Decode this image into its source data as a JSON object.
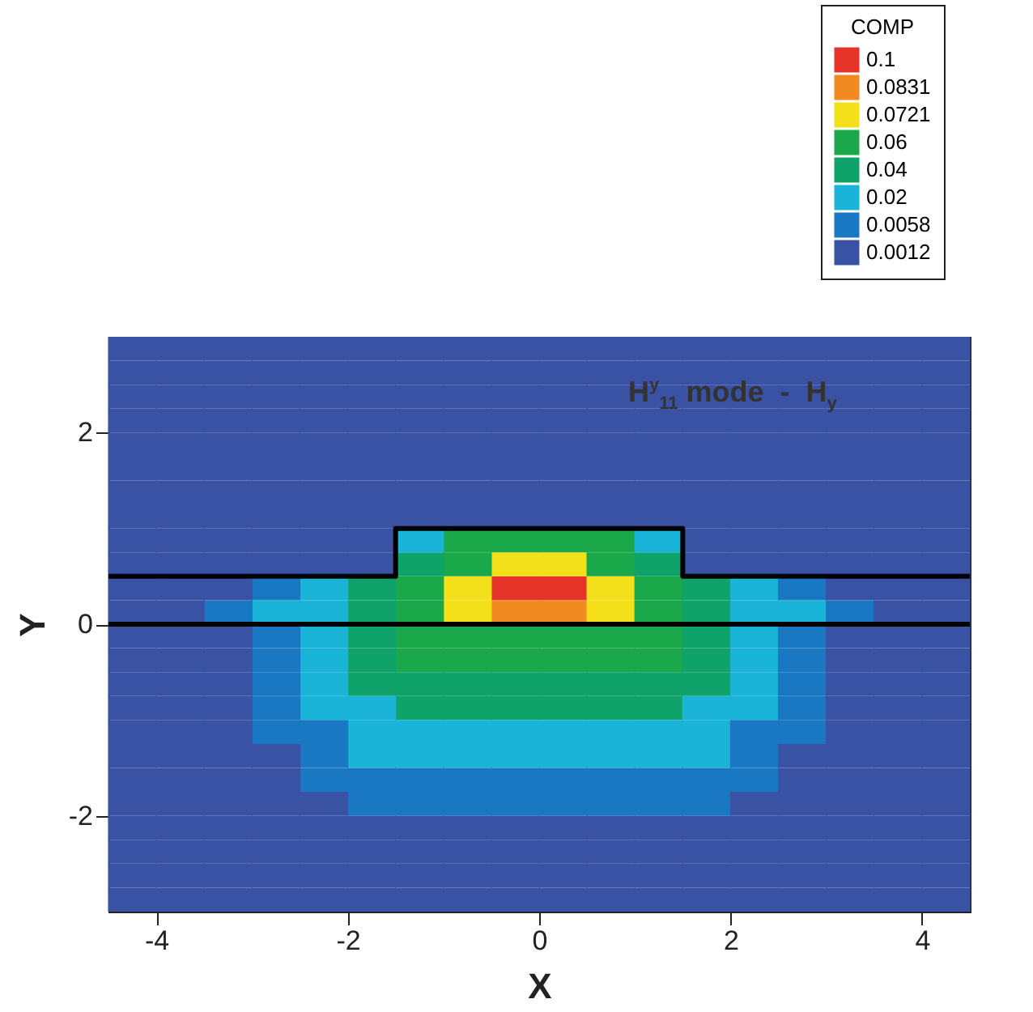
{
  "chart_data": {
    "type": "scatter",
    "xlabel": "X",
    "ylabel": "Y",
    "legend_title": "COMP",
    "annotations": [
      "H$^{y}$$_{11}$ mode  -  H$_{y}$"
    ],
    "xlim": [
      -4.5,
      4.5
    ],
    "ylim": [
      -3,
      3
    ],
    "xticks": [
      -4,
      -2,
      0,
      2,
      4
    ],
    "yticks": [
      -2,
      0,
      2
    ],
    "marker": "square",
    "legend": "top right",
    "series": [
      {
        "name": "0.1",
        "color": "#e63329",
        "x": [
          -0.25,
          0.25
        ],
        "values": [
          0.375,
          0.375
        ]
      },
      {
        "name": "0.0831",
        "color": "#f28a22",
        "x": [
          -0.25,
          0.25
        ],
        "values": [
          0.125,
          0.125
        ]
      },
      {
        "name": "0.0721",
        "color": "#f3e01a",
        "x": [
          -0.25,
          0.25,
          -0.75,
          0.75,
          -0.75,
          0.75
        ],
        "values": [
          0.625,
          0.625,
          0.375,
          0.375,
          0.125,
          0.125
        ]
      },
      {
        "name": "0.06",
        "color": "#1aa84a",
        "x": [
          -0.75,
          -0.25,
          0.25,
          0.75,
          -0.75,
          0.75,
          -1.25,
          1.25,
          -1.25,
          1.25,
          -1.25,
          -0.75,
          -0.25,
          0.25,
          0.75,
          1.25,
          -1.25,
          -0.75,
          -0.25,
          0.25,
          0.75,
          1.25
        ],
        "values": [
          0.875,
          0.875,
          0.875,
          0.875,
          0.625,
          0.625,
          0.375,
          0.375,
          0.125,
          0.125,
          -0.125,
          -0.125,
          -0.125,
          -0.125,
          -0.125,
          -0.125,
          -0.375,
          -0.375,
          -0.375,
          -0.375,
          -0.375,
          -0.375
        ]
      },
      {
        "name": "0.04",
        "color": "#0fa36b",
        "x": [
          -1.25,
          1.25,
          -1.75,
          1.75,
          -1.75,
          1.75,
          -1.75,
          1.75,
          -1.75,
          1.75,
          -1.75,
          -1.25,
          -0.75,
          -0.25,
          0.25,
          0.75,
          1.25,
          1.75,
          -1.25,
          -0.75,
          -0.25,
          0.25,
          0.75,
          1.25
        ],
        "values": [
          0.625,
          0.625,
          0.375,
          0.375,
          0.125,
          0.125,
          -0.125,
          -0.125,
          -0.375,
          -0.375,
          -0.625,
          -0.625,
          -0.625,
          -0.625,
          -0.625,
          -0.625,
          -0.625,
          -0.625,
          -0.875,
          -0.875,
          -0.875,
          -0.875,
          -0.875,
          -0.875
        ]
      },
      {
        "name": "0.02",
        "color": "#19b4d8",
        "x": [
          -1.25,
          1.25,
          -2.25,
          2.25,
          -2.75,
          -2.25,
          2.25,
          2.75,
          -2.25,
          2.25,
          -2.25,
          2.25,
          -2.25,
          2.25,
          -2.25,
          -1.75,
          1.75,
          2.25,
          -1.75,
          -1.25,
          -0.75,
          -0.25,
          0.25,
          0.75,
          1.25,
          1.75,
          -1.75,
          -1.25,
          -0.75,
          -0.25,
          0.25,
          0.75,
          1.25,
          1.75
        ],
        "values": [
          0.875,
          0.875,
          0.375,
          0.375,
          0.125,
          0.125,
          0.125,
          0.125,
          -0.125,
          -0.125,
          -0.375,
          -0.375,
          -0.625,
          -0.625,
          -0.875,
          -0.875,
          -0.875,
          -0.875,
          -1.125,
          -1.125,
          -1.125,
          -1.125,
          -1.125,
          -1.125,
          -1.125,
          -1.125,
          -1.375,
          -1.375,
          -1.375,
          -1.375,
          -1.375,
          -1.375,
          -1.375,
          -1.375
        ]
      },
      {
        "name": "0.0058",
        "color": "#1a78c2",
        "x": [
          -2.75,
          2.75,
          -3.25,
          3.25,
          -2.75,
          2.75,
          -2.75,
          2.75,
          -2.75,
          2.75,
          -2.75,
          2.75,
          -2.75,
          -2.25,
          2.25,
          2.75,
          -2.25,
          2.25,
          -2.25,
          -1.75,
          -1.25,
          -0.75,
          -0.25,
          0.25,
          0.75,
          1.25,
          1.75,
          2.25,
          -1.75,
          -1.25,
          -0.75,
          -0.25,
          0.25,
          0.75,
          1.25,
          1.75
        ],
        "values": [
          0.375,
          0.375,
          0.125,
          0.125,
          -0.125,
          -0.125,
          -0.375,
          -0.375,
          -0.625,
          -0.625,
          -0.875,
          -0.875,
          -1.125,
          -1.125,
          -1.125,
          -1.125,
          -1.375,
          -1.375,
          -1.625,
          -1.625,
          -1.625,
          -1.625,
          -1.625,
          -1.625,
          -1.625,
          -1.625,
          -1.625,
          -1.625,
          -1.875,
          -1.875,
          -1.875,
          -1.875,
          -1.875,
          -1.875,
          -1.875,
          -1.875
        ]
      },
      {
        "name": "0.0012",
        "color": "#3a52a4",
        "x": [
          -4.25,
          -3.75,
          -3.25,
          -2.75,
          -2.25,
          -1.75,
          -1.25,
          -0.75,
          -0.25,
          0.25,
          0.75,
          1.25,
          1.75,
          2.25,
          2.75,
          3.25,
          3.75,
          4.25,
          -4.25,
          -3.75,
          -3.25,
          -2.75,
          -2.25,
          -1.75,
          -1.25,
          -0.75,
          -0.25,
          0.25,
          0.75,
          1.25,
          1.75,
          2.25,
          2.75,
          3.25,
          3.75,
          4.25,
          -4.25,
          -3.75,
          -3.25,
          -2.75,
          -2.25,
          -1.75,
          -1.25,
          -0.75,
          -0.25,
          0.25,
          0.75,
          1.25,
          1.75,
          2.25,
          2.75,
          3.25,
          3.75,
          4.25,
          -4.25,
          -3.75,
          -3.25,
          -2.75,
          -2.25,
          -1.75,
          -1.25,
          -0.75,
          -0.25,
          0.25,
          0.75,
          1.25,
          1.75,
          2.25,
          2.75,
          3.25,
          3.75,
          4.25,
          -4.25,
          -3.75,
          -3.25,
          -2.75,
          -2.25,
          -1.75,
          -1.25,
          -0.75,
          -0.25,
          0.25,
          0.75,
          1.25,
          1.75,
          2.25,
          2.75,
          3.25,
          3.75,
          4.25,
          -4.25,
          -3.75,
          -3.25,
          -2.75,
          -2.25,
          -1.75,
          -1.25,
          -0.75,
          -0.25,
          0.25,
          0.75,
          1.25,
          1.75,
          2.25,
          2.75,
          3.25,
          3.75,
          4.25,
          -4.25,
          -3.75,
          -3.25,
          -2.75,
          -2.25,
          -1.75,
          -1.25,
          -0.75,
          -0.25,
          0.25,
          0.75,
          1.25,
          1.75,
          2.25,
          2.75,
          3.25,
          3.75,
          4.25,
          -4.25,
          -3.75,
          -3.25,
          -2.75,
          -2.25,
          -1.75,
          -1.25,
          -0.75,
          -0.25,
          0.25,
          0.75,
          1.25,
          1.75,
          2.25,
          2.75,
          3.25,
          3.75,
          4.25,
          -4.25,
          -3.75,
          -3.25,
          -2.75,
          -2.25,
          -1.75,
          1.75,
          2.25,
          2.75,
          3.25,
          3.75,
          4.25,
          -4.25,
          -3.75,
          -3.25,
          -2.75,
          -2.25,
          -1.75,
          1.75,
          2.25,
          2.75,
          3.25,
          3.75,
          4.25,
          -4.25,
          -3.75,
          -3.25,
          3.25,
          3.75,
          4.25,
          -4.25,
          -3.75,
          3.75,
          4.25,
          -4.25,
          -3.75,
          -3.25,
          3.25,
          3.75,
          4.25,
          -4.25,
          -3.75,
          -3.25,
          3.25,
          3.75,
          4.25,
          -4.25,
          -3.75,
          -3.25,
          3.25,
          3.75,
          4.25,
          -4.25,
          -3.75,
          -3.25,
          3.25,
          3.75,
          4.25,
          -4.25,
          -3.75,
          -3.25,
          3.25,
          3.75,
          4.25,
          -4.25,
          -3.75,
          -3.25,
          -2.75,
          2.75,
          3.25,
          3.75,
          4.25,
          -4.25,
          -3.75,
          -3.25,
          -2.75,
          2.75,
          3.25,
          3.75,
          4.25,
          -4.25,
          -3.75,
          -3.25,
          -2.75,
          -2.25,
          2.25,
          2.75,
          3.25,
          3.75,
          4.25,
          -4.25,
          -3.75,
          -3.25,
          -2.75,
          -2.25,
          -1.75,
          -1.25,
          -0.75,
          -0.25,
          0.25,
          0.75,
          1.25,
          1.75,
          2.25,
          2.75,
          3.25,
          3.75,
          4.25,
          -4.25,
          -3.75,
          -3.25,
          -2.75,
          -2.25,
          -1.75,
          -1.25,
          -0.75,
          -0.25,
          0.25,
          0.75,
          1.25,
          1.75,
          2.25,
          2.75,
          3.25,
          3.75,
          4.25,
          -4.25,
          -3.75,
          -3.25,
          -2.75,
          -2.25,
          -1.75,
          -1.25,
          -0.75,
          -0.25,
          0.25,
          0.75,
          1.25,
          1.75,
          2.25,
          2.75,
          3.25,
          3.75,
          4.25,
          -4.25,
          -3.75,
          -3.25,
          -2.75,
          -2.25,
          -1.75,
          -1.25,
          -0.75,
          -0.25,
          0.25,
          0.75,
          1.25,
          1.75,
          2.25,
          2.75,
          3.25,
          3.75,
          4.25
        ],
        "values": [
          2.875,
          2.875,
          2.875,
          2.875,
          2.875,
          2.875,
          2.875,
          2.875,
          2.875,
          2.875,
          2.875,
          2.875,
          2.875,
          2.875,
          2.875,
          2.875,
          2.875,
          2.875,
          2.625,
          2.625,
          2.625,
          2.625,
          2.625,
          2.625,
          2.625,
          2.625,
          2.625,
          2.625,
          2.625,
          2.625,
          2.625,
          2.625,
          2.625,
          2.625,
          2.625,
          2.625,
          2.375,
          2.375,
          2.375,
          2.375,
          2.375,
          2.375,
          2.375,
          2.375,
          2.375,
          2.375,
          2.375,
          2.375,
          2.375,
          2.375,
          2.375,
          2.375,
          2.375,
          2.375,
          2.125,
          2.125,
          2.125,
          2.125,
          2.125,
          2.125,
          2.125,
          2.125,
          2.125,
          2.125,
          2.125,
          2.125,
          2.125,
          2.125,
          2.125,
          2.125,
          2.125,
          2.125,
          1.875,
          1.875,
          1.875,
          1.875,
          1.875,
          1.875,
          1.875,
          1.875,
          1.875,
          1.875,
          1.875,
          1.875,
          1.875,
          1.875,
          1.875,
          1.875,
          1.875,
          1.875,
          1.625,
          1.625,
          1.625,
          1.625,
          1.625,
          1.625,
          1.625,
          1.625,
          1.625,
          1.625,
          1.625,
          1.625,
          1.625,
          1.625,
          1.625,
          1.625,
          1.625,
          1.625,
          1.375,
          1.375,
          1.375,
          1.375,
          1.375,
          1.375,
          1.375,
          1.375,
          1.375,
          1.375,
          1.375,
          1.375,
          1.375,
          1.375,
          1.375,
          1.375,
          1.375,
          1.375,
          1.125,
          1.125,
          1.125,
          1.125,
          1.125,
          1.125,
          1.125,
          1.125,
          1.125,
          1.125,
          1.125,
          1.125,
          1.125,
          1.125,
          1.125,
          1.125,
          1.125,
          1.125,
          0.875,
          0.875,
          0.875,
          0.875,
          0.875,
          0.875,
          0.875,
          0.875,
          0.875,
          0.875,
          0.875,
          0.875,
          0.625,
          0.625,
          0.625,
          0.625,
          0.625,
          0.625,
          0.625,
          0.625,
          0.625,
          0.625,
          0.625,
          0.625,
          0.375,
          0.375,
          0.375,
          0.375,
          0.375,
          0.375,
          0.125,
          0.125,
          0.125,
          0.125,
          -0.125,
          -0.125,
          -0.125,
          -0.125,
          -0.125,
          -0.125,
          -0.375,
          -0.375,
          -0.375,
          -0.375,
          -0.375,
          -0.375,
          -0.625,
          -0.625,
          -0.625,
          -0.625,
          -0.625,
          -0.625,
          -0.875,
          -0.875,
          -0.875,
          -0.875,
          -0.875,
          -0.875,
          -1.125,
          -1.125,
          -1.125,
          -1.125,
          -1.125,
          -1.125,
          -1.375,
          -1.375,
          -1.375,
          -1.375,
          -1.375,
          -1.375,
          -1.375,
          -1.375,
          -1.625,
          -1.625,
          -1.625,
          -1.625,
          -1.625,
          -1.625,
          -1.625,
          -1.625,
          -1.875,
          -1.875,
          -1.875,
          -1.875,
          -1.875,
          -1.875,
          -1.875,
          -1.875,
          -1.875,
          -1.875,
          -2.125,
          -2.125,
          -2.125,
          -2.125,
          -2.125,
          -2.125,
          -2.125,
          -2.125,
          -2.125,
          -2.125,
          -2.125,
          -2.125,
          -2.125,
          -2.125,
          -2.125,
          -2.125,
          -2.125,
          -2.125,
          -2.375,
          -2.375,
          -2.375,
          -2.375,
          -2.375,
          -2.375,
          -2.375,
          -2.375,
          -2.375,
          -2.375,
          -2.375,
          -2.375,
          -2.375,
          -2.375,
          -2.375,
          -2.375,
          -2.375,
          -2.375,
          -2.625,
          -2.625,
          -2.625,
          -2.625,
          -2.625,
          -2.625,
          -2.625,
          -2.625,
          -2.625,
          -2.625,
          -2.625,
          -2.625,
          -2.625,
          -2.625,
          -2.625,
          -2.625,
          -2.625,
          -2.625,
          -2.875,
          -2.875,
          -2.875,
          -2.875,
          -2.875,
          -2.875,
          -2.875,
          -2.875,
          -2.875,
          -2.875,
          -2.875,
          -2.875,
          -2.875,
          -2.875,
          -2.875,
          -2.875,
          -2.875,
          -2.875
        ]
      },
      {
        "type": "line",
        "marker": "none",
        "color": "#000000",
        "x": [
          -4.5,
          -1.5,
          -1.5,
          1.5,
          1.5,
          4.5
        ],
        "values": [
          0.5,
          0.5,
          1,
          1,
          0.5,
          0.5
        ]
      }
    ],
    "ref_lines": [
      {
        "axis": "y",
        "value": 0,
        "color": "#000000"
      }
    ]
  }
}
